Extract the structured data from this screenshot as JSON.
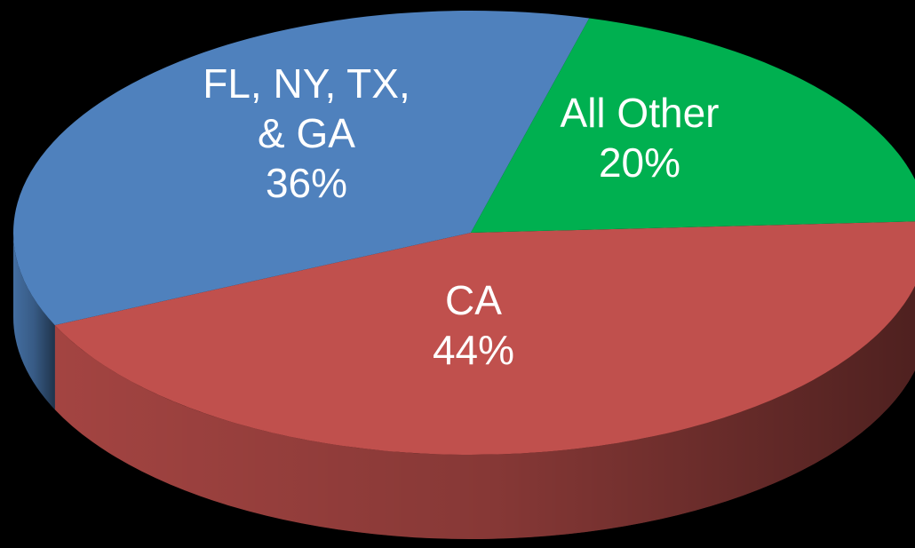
{
  "chart_data": {
    "type": "pie3d",
    "categories": [
      "CA",
      "FL, NY, TX, & GA",
      "All Other"
    ],
    "values": [
      44,
      36,
      20
    ],
    "value_labels": [
      "44%",
      "36%",
      "20%"
    ],
    "colors": [
      "#c0504d",
      "#4f81bd",
      "#00b050"
    ]
  }
}
